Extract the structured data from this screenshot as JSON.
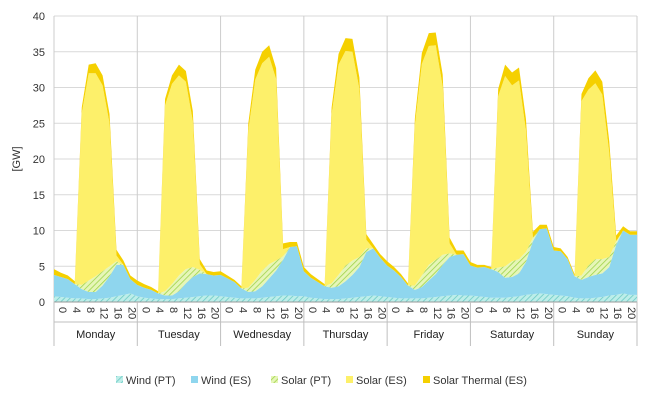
{
  "chart_data": {
    "type": "area",
    "stacked": true,
    "xlabel": "",
    "ylabel": "[GW]",
    "ylim": [
      0,
      40
    ],
    "yticks": [
      "0",
      "5",
      "10",
      "15",
      "20",
      "25",
      "30",
      "35",
      "40"
    ],
    "hour_tick_labels": [
      "0",
      "4",
      "8",
      "12",
      "16",
      "20"
    ],
    "days": [
      "Monday",
      "Tuesday",
      "Wednesday",
      "Thursday",
      "Friday",
      "Saturday",
      "Sunday"
    ],
    "grid": true,
    "legend_position": "bottom",
    "colors": {
      "wind_pt": "#9fe1dd",
      "wind_es": "#8fd6ee",
      "solar_pt": "#c9ec8c",
      "solar_es": "#fdf06a",
      "solar_thermal_es": "#f5d000"
    },
    "series": [
      {
        "name": "Wind (PT)",
        "hour_interval": 2,
        "values": [
          [
            0.8,
            0.7,
            0.6,
            0.5,
            0.5,
            0.4,
            0.4,
            0.5,
            0.6,
            0.8,
            1.0,
            1.2
          ],
          [
            0.8,
            0.6,
            0.5,
            0.4,
            0.4,
            0.4,
            0.5,
            0.6,
            0.7,
            0.8,
            0.9,
            0.9
          ],
          [
            0.8,
            0.7,
            0.6,
            0.5,
            0.5,
            0.5,
            0.6,
            0.7,
            0.8,
            0.9,
            0.9,
            0.8
          ],
          [
            0.8,
            0.6,
            0.5,
            0.4,
            0.4,
            0.4,
            0.5,
            0.6,
            0.7,
            0.8,
            0.9,
            0.8
          ],
          [
            0.7,
            0.6,
            0.5,
            0.5,
            0.5,
            0.5,
            0.6,
            0.7,
            0.8,
            0.9,
            1.0,
            0.9
          ],
          [
            0.9,
            0.8,
            0.7,
            0.6,
            0.6,
            0.6,
            0.7,
            0.8,
            1.0,
            1.1,
            1.2,
            1.1
          ],
          [
            1.0,
            0.9,
            0.8,
            0.6,
            0.5,
            0.5,
            0.6,
            0.7,
            0.9,
            1.0,
            1.2,
            1.0
          ]
        ]
      },
      {
        "name": "Wind (ES)",
        "hour_interval": 2,
        "values": [
          [
            3.0,
            2.8,
            2.6,
            2.0,
            1.3,
            1.0,
            1.0,
            1.8,
            3.0,
            4.4,
            4.2,
            2.0
          ],
          [
            1.6,
            1.4,
            1.2,
            0.8,
            0.5,
            0.5,
            1.0,
            2.0,
            2.8,
            3.2,
            3.0,
            2.8
          ],
          [
            3.0,
            2.6,
            2.2,
            1.4,
            0.9,
            1.0,
            1.6,
            2.6,
            3.6,
            5.0,
            6.8,
            7.0
          ],
          [
            3.5,
            2.8,
            2.3,
            1.8,
            1.6,
            1.8,
            2.4,
            3.2,
            4.2,
            6.2,
            6.6,
            5.4
          ],
          [
            4.4,
            3.8,
            3.0,
            1.8,
            1.2,
            1.6,
            2.4,
            3.2,
            4.4,
            5.4,
            5.6,
            5.8
          ],
          [
            4.2,
            4.0,
            4.2,
            4.0,
            3.6,
            2.8,
            2.8,
            3.2,
            4.6,
            7.4,
            9.0,
            9.2
          ],
          [
            6.2,
            6.2,
            5.2,
            3.0,
            2.6,
            3.0,
            3.2,
            3.3,
            4.0,
            7.0,
            8.8,
            8.4
          ]
        ]
      },
      {
        "name": "Solar (PT)",
        "hour_interval": 2,
        "values": [
          [
            0.0,
            0.0,
            0.0,
            0.0,
            0.6,
            1.6,
            2.2,
            2.0,
            1.4,
            0.5,
            0.0,
            0.0
          ],
          [
            0.0,
            0.0,
            0.0,
            0.0,
            0.6,
            1.6,
            2.2,
            2.0,
            1.4,
            0.5,
            0.0,
            0.0
          ],
          [
            0.0,
            0.0,
            0.0,
            0.0,
            0.6,
            1.6,
            2.2,
            2.0,
            1.4,
            0.5,
            0.0,
            0.0
          ],
          [
            0.0,
            0.0,
            0.0,
            0.0,
            0.6,
            1.6,
            2.2,
            2.0,
            1.4,
            0.5,
            0.0,
            0.0
          ],
          [
            0.0,
            0.0,
            0.0,
            0.0,
            0.6,
            1.6,
            2.2,
            2.0,
            1.4,
            0.5,
            0.0,
            0.0
          ],
          [
            0.0,
            0.0,
            0.0,
            0.0,
            0.6,
            1.6,
            2.2,
            2.0,
            1.4,
            0.5,
            0.0,
            0.0
          ],
          [
            0.0,
            0.0,
            0.0,
            0.0,
            0.6,
            1.6,
            2.2,
            2.0,
            1.4,
            0.5,
            0.0,
            0.0
          ]
        ]
      },
      {
        "name": "Solar (ES)",
        "hour_interval": 2,
        "values": [
          [
            0.0,
            0.0,
            0.0,
            0.0,
            24.0,
            29.0,
            28.4,
            26.0,
            20.0,
            0.8,
            0.0,
            0.0
          ],
          [
            0.0,
            0.0,
            0.0,
            0.0,
            26.0,
            28.0,
            28.0,
            26.2,
            20.4,
            0.8,
            0.0,
            0.0
          ],
          [
            0.0,
            0.0,
            0.0,
            0.0,
            22.0,
            28.0,
            29.0,
            29.0,
            25.4,
            1.0,
            0.0,
            0.0
          ],
          [
            0.0,
            0.0,
            0.0,
            0.0,
            23.6,
            29.4,
            30.0,
            29.2,
            23.5,
            1.2,
            0.0,
            0.0
          ],
          [
            0.0,
            0.0,
            0.0,
            0.0,
            22.4,
            29.6,
            30.6,
            30.0,
            23.6,
            1.4,
            0.0,
            0.0
          ],
          [
            0.0,
            0.0,
            0.0,
            0.0,
            24.0,
            26.6,
            24.6,
            25.0,
            17.0,
            0.0,
            0.0,
            0.0
          ],
          [
            0.0,
            0.0,
            0.0,
            0.0,
            24.4,
            24.6,
            24.6,
            23.0,
            14.6,
            0.0,
            0.0,
            0.0
          ]
        ]
      },
      {
        "name": "Solar Thermal (ES)",
        "hour_interval": 2,
        "values": [
          [
            0.8,
            0.6,
            0.5,
            0.4,
            0.8,
            1.2,
            1.4,
            1.4,
            1.3,
            0.8,
            0.6,
            0.5
          ],
          [
            0.6,
            0.5,
            0.4,
            0.3,
            0.9,
            1.2,
            1.5,
            1.5,
            1.4,
            0.7,
            0.5,
            0.5
          ],
          [
            0.5,
            0.4,
            0.3,
            0.3,
            1.0,
            1.4,
            1.6,
            1.6,
            1.5,
            0.8,
            0.7,
            0.6
          ],
          [
            0.6,
            0.5,
            0.4,
            0.3,
            1.0,
            1.5,
            1.8,
            1.8,
            1.6,
            0.8,
            0.6,
            0.5
          ],
          [
            0.6,
            0.5,
            0.4,
            0.3,
            1.0,
            1.5,
            1.8,
            1.8,
            1.6,
            0.8,
            0.6,
            0.5
          ],
          [
            0.5,
            0.4,
            0.3,
            0.3,
            1.0,
            1.6,
            1.8,
            1.8,
            1.6,
            0.8,
            0.6,
            0.5
          ],
          [
            0.5,
            0.4,
            0.3,
            0.3,
            1.0,
            1.6,
            1.8,
            1.8,
            1.6,
            0.8,
            0.6,
            0.5
          ]
        ]
      }
    ]
  }
}
